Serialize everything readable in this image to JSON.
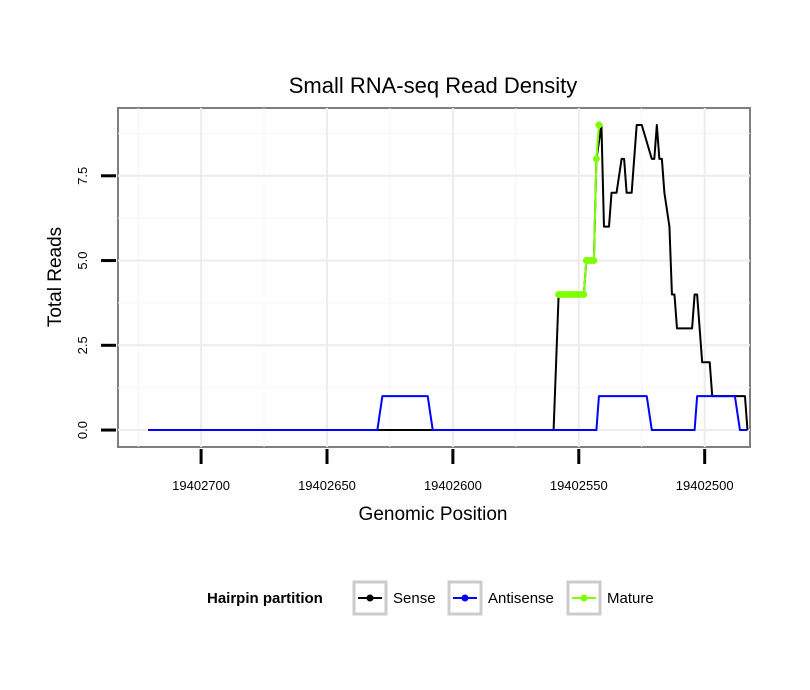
{
  "chart_data": {
    "type": "line",
    "title": "Small RNA-seq Read Density",
    "xlabel": "Genomic Position",
    "ylabel": "Total Reads",
    "x_reversed": true,
    "xlim": [
      19402733,
      19402482
    ],
    "ylim": [
      -0.5,
      9.5
    ],
    "xticks": [
      19402700,
      19402650,
      19402600,
      19402550,
      19402500
    ],
    "xtick_labels": [
      "19402700",
      "19402650",
      "19402600",
      "19402550",
      "19402500"
    ],
    "yticks": [
      0,
      2.5,
      5,
      7.5
    ],
    "ytick_labels": [
      "0.0",
      "2.5",
      "5.0",
      "7.5"
    ],
    "grid": true,
    "legend": {
      "title": "Hairpin partition",
      "placement": "bottom",
      "entries": [
        {
          "name": "Sense",
          "color": "#000000"
        },
        {
          "name": "Antisense",
          "color": "#0000ff"
        },
        {
          "name": "Mature",
          "color": "#80ff00"
        }
      ]
    },
    "series": [
      {
        "name": "Sense",
        "color": "#000000",
        "x": [
          19402721,
          19402620,
          19402560,
          19402559,
          19402558,
          19402557,
          19402548,
          19402547,
          19402544,
          19402543,
          19402541,
          19402540,
          19402538,
          19402537,
          19402536,
          19402535,
          19402533,
          19402532,
          19402531,
          19402530,
          19402529,
          19402527,
          19402526,
          19402525,
          19402521,
          19402520,
          19402519,
          19402518,
          19402517,
          19402516,
          19402514,
          19402513,
          19402512,
          19402511,
          19402510,
          19402509,
          19402505,
          19402504,
          19402503,
          19402502,
          19402501,
          19402500,
          19402498,
          19402497,
          19402494,
          19402493,
          19402484,
          19402483
        ],
        "y": [
          0,
          0,
          0,
          2,
          4,
          4,
          4,
          5,
          5,
          8,
          9,
          6,
          6,
          7,
          7,
          7,
          8,
          8,
          7,
          7,
          7,
          9,
          9,
          9,
          8,
          8,
          9,
          8,
          8,
          7,
          6,
          4,
          4,
          3,
          3,
          3,
          3,
          4,
          4,
          3,
          2,
          2,
          2,
          1,
          1,
          1,
          1,
          0
        ]
      },
      {
        "name": "Antisense",
        "color": "#0000ff",
        "x": [
          19402721,
          19402630,
          19402628,
          19402610,
          19402608,
          19402543,
          19402542,
          19402523,
          19402521,
          19402504,
          19402503,
          19402488,
          19402486,
          19402483
        ],
        "y": [
          0,
          0,
          1,
          1,
          0,
          0,
          1,
          1,
          0,
          0,
          1,
          1,
          0,
          0
        ]
      },
      {
        "name": "Mature",
        "color": "#80ff00",
        "x": [
          19402558,
          19402557,
          19402556,
          19402555,
          19402554,
          19402553,
          19402552,
          19402551,
          19402550,
          19402549,
          19402548,
          19402547,
          19402546,
          19402545,
          19402544,
          19402543,
          19402542
        ],
        "y": [
          4,
          4,
          4,
          4,
          4,
          4,
          4,
          4,
          4,
          4,
          4,
          5,
          5,
          5,
          5,
          8,
          9
        ]
      }
    ]
  }
}
